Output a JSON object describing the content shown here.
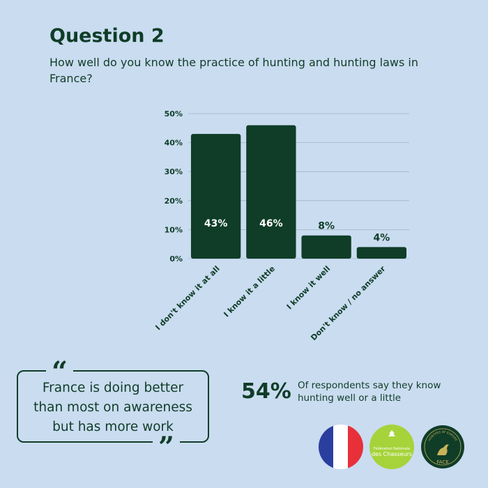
{
  "header": {
    "title": "Question 2",
    "subtitle": "How well do you know the practice of hunting and hunting laws in France?"
  },
  "chart_data": {
    "type": "bar",
    "categories": [
      "I don't know it at all",
      "I know it a little",
      "I know it well",
      "Don't know / no answer"
    ],
    "values": [
      43,
      46,
      8,
      4
    ],
    "value_labels": [
      "43%",
      "46%",
      "8%",
      "4%"
    ],
    "y_ticks": [
      "0%",
      "10%",
      "20%",
      "30%",
      "40%",
      "50%"
    ],
    "ylim": [
      0,
      50
    ],
    "grid": true,
    "bar_color": "#0f3d28",
    "grid_color": "#9eb3c8"
  },
  "quote": {
    "open_mark": "“",
    "close_mark": "”",
    "text_lines": [
      "France is doing better",
      "than most on awareness",
      "but has more work"
    ]
  },
  "stat": {
    "value": "54%",
    "text": "Of respondents say they know hunting well or a little"
  },
  "logos": {
    "france_flag": [
      "#2a3ea0",
      "#ffffff",
      "#e8303a"
    ],
    "fnc_label_lines": [
      "Fédération Nationale",
      "des Chasseurs"
    ],
    "fnc_color": "#a6d33a",
    "face_ring_text": "HUNTERS OF EUROPE",
    "face_label": "FACE",
    "face_color": "#0f3d28",
    "face_accent": "#c9b25a"
  }
}
